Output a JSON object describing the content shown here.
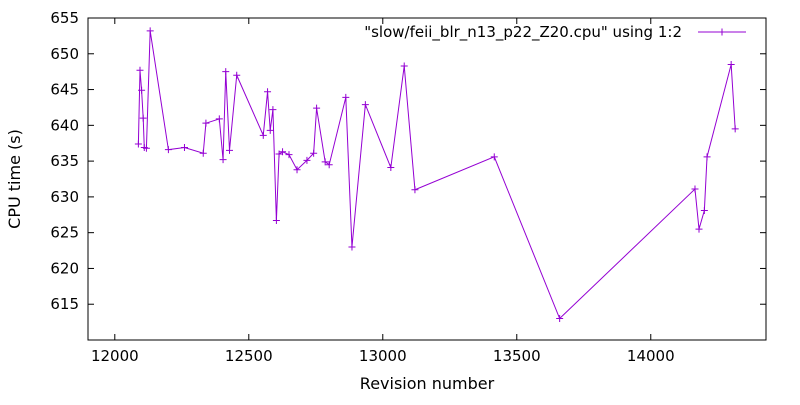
{
  "chart_data": {
    "type": "line",
    "xlabel": "Revision number",
    "ylabel": "CPU time (s)",
    "xlim": [
      11900,
      14430
    ],
    "ylim": [
      610,
      655
    ],
    "xticks": [
      12000,
      12500,
      13000,
      13500,
      14000
    ],
    "yticks": [
      615,
      620,
      625,
      630,
      635,
      640,
      645,
      650,
      655
    ],
    "grid": false,
    "legend_position": "top-right",
    "series": [
      {
        "name": "\"slow/feii_blr_n13_p22_Z20.cpu\" using 1:2",
        "color": "#9400d3",
        "marker": "plus",
        "points": [
          [
            12088,
            637.4
          ],
          [
            12094,
            647.7
          ],
          [
            12100,
            644.9
          ],
          [
            12106,
            641.0
          ],
          [
            12110,
            636.9
          ],
          [
            12118,
            636.8
          ],
          [
            12132,
            653.2
          ],
          [
            12200,
            636.6
          ],
          [
            12260,
            636.9
          ],
          [
            12330,
            636.1
          ],
          [
            12340,
            640.3
          ],
          [
            12390,
            640.9
          ],
          [
            12404,
            635.2
          ],
          [
            12414,
            647.5
          ],
          [
            12428,
            636.5
          ],
          [
            12455,
            647.0
          ],
          [
            12554,
            638.6
          ],
          [
            12570,
            644.7
          ],
          [
            12580,
            639.3
          ],
          [
            12590,
            642.2
          ],
          [
            12603,
            626.7
          ],
          [
            12613,
            636.0
          ],
          [
            12626,
            636.3
          ],
          [
            12650,
            635.9
          ],
          [
            12680,
            633.8
          ],
          [
            12717,
            635.1
          ],
          [
            12742,
            636.1
          ],
          [
            12753,
            642.4
          ],
          [
            12785,
            634.9
          ],
          [
            12800,
            634.5
          ],
          [
            12862,
            643.9
          ],
          [
            12885,
            623.0
          ],
          [
            12935,
            642.9
          ],
          [
            13030,
            634.1
          ],
          [
            13080,
            648.3
          ],
          [
            13120,
            631.0
          ],
          [
            13416,
            635.6
          ],
          [
            13660,
            613.0
          ],
          [
            14165,
            631.1
          ],
          [
            14180,
            625.5
          ],
          [
            14200,
            628.1
          ],
          [
            14210,
            635.6
          ],
          [
            14300,
            648.5
          ],
          [
            14315,
            639.5
          ]
        ]
      }
    ]
  }
}
